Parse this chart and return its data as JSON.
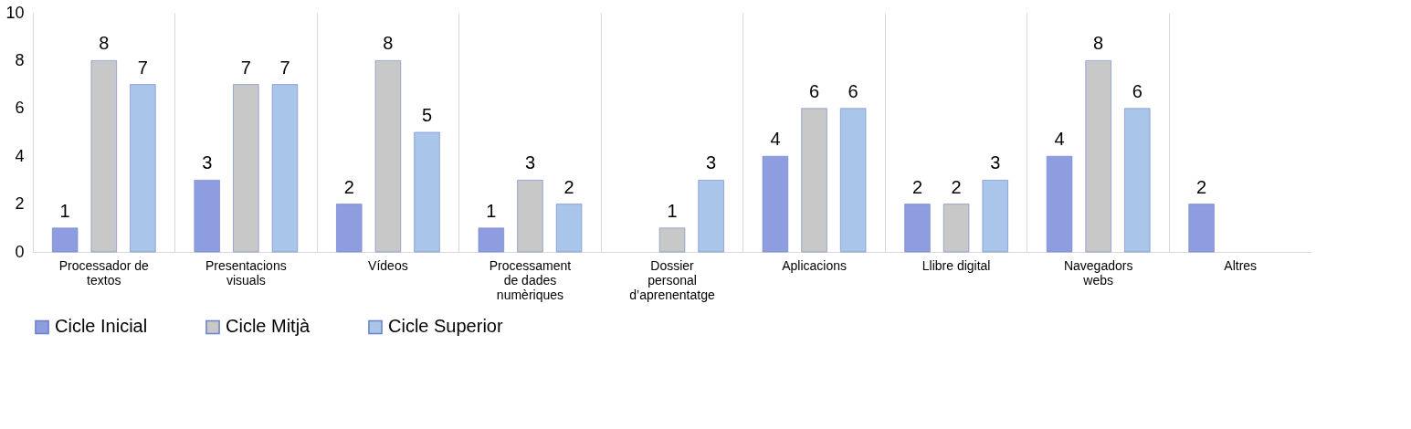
{
  "chart_data": {
    "type": "bar",
    "categories": [
      "Processador de textos",
      "Presentacions visuals",
      "Vídeos",
      "Processament de dades numèriques",
      "Dossier personal d’aprenentatge",
      "Aplicacions",
      "Llibre digital",
      "Navegadors webs",
      "Altres"
    ],
    "series": [
      {
        "name": "Cicle Inicial",
        "color": "#8e9de0",
        "values": [
          1,
          3,
          2,
          1,
          null,
          4,
          2,
          4,
          2
        ]
      },
      {
        "name": "Cicle Mitjà",
        "color": "#c8c8c8",
        "values": [
          8,
          7,
          8,
          3,
          1,
          6,
          2,
          8,
          null
        ]
      },
      {
        "name": "Cicle Superior",
        "color": "#a9c6ea",
        "values": [
          7,
          7,
          5,
          2,
          3,
          6,
          3,
          6,
          null
        ]
      }
    ],
    "ylim": [
      0,
      10
    ],
    "yticks": [
      0,
      2,
      4,
      6,
      8,
      10
    ],
    "grid": "x",
    "legend": "bottom",
    "data_labels": true
  }
}
